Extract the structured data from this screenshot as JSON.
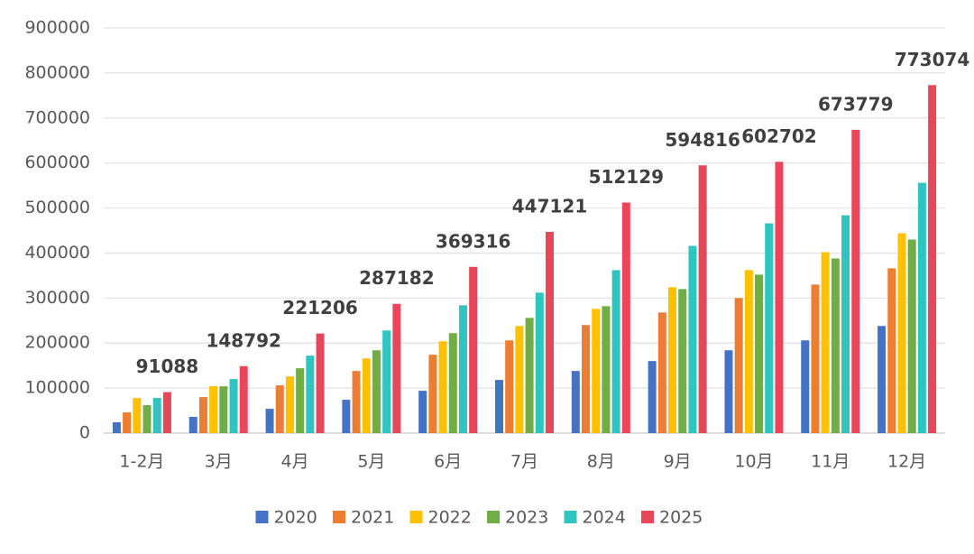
{
  "chart_data": {
    "type": "bar",
    "categories": [
      "1-2月",
      "3月",
      "4月",
      "5月",
      "6月",
      "7月",
      "8月",
      "9月",
      "10月",
      "11月",
      "12月"
    ],
    "series": [
      {
        "name": "2020",
        "color": "#4472c4",
        "values": [
          24000,
          36000,
          54000,
          74000,
          94000,
          118000,
          138000,
          160000,
          184000,
          206000,
          238000
        ]
      },
      {
        "name": "2021",
        "color": "#ed7d31",
        "values": [
          46000,
          80000,
          106000,
          138000,
          174000,
          206000,
          240000,
          268000,
          300000,
          330000,
          366000
        ]
      },
      {
        "name": "2022",
        "color": "#ffc000",
        "values": [
          78000,
          104000,
          126000,
          166000,
          204000,
          238000,
          276000,
          324000,
          362000,
          402000,
          444000
        ]
      },
      {
        "name": "2023",
        "color": "#70ad47",
        "values": [
          62000,
          104000,
          144000,
          184000,
          222000,
          256000,
          282000,
          320000,
          352000,
          388000,
          430000
        ]
      },
      {
        "name": "2024",
        "color": "#2ec4c0",
        "values": [
          78000,
          120000,
          172000,
          228000,
          284000,
          312000,
          362000,
          416000,
          466000,
          484000,
          556000
        ]
      },
      {
        "name": "2025",
        "color": "#e8475a",
        "values": [
          91088,
          148792,
          221206,
          287182,
          369316,
          447121,
          512129,
          594816,
          602702,
          673779,
          773074
        ]
      }
    ],
    "data_labels_series": 5,
    "ylim": [
      0,
      900000
    ],
    "yticks": [
      0,
      100000,
      200000,
      300000,
      400000,
      500000,
      600000,
      700000,
      800000,
      900000
    ],
    "grid": true
  }
}
